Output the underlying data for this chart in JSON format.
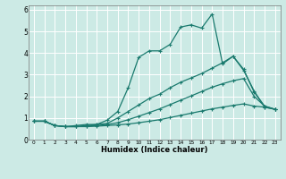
{
  "title": "",
  "xlabel": "Humidex (Indice chaleur)",
  "ylabel": "",
  "bg_color": "#cceae5",
  "line_color": "#1a7a6e",
  "grid_color": "#ffffff",
  "xlim": [
    -0.5,
    23.5
  ],
  "ylim": [
    0,
    6.2
  ],
  "xticks": [
    0,
    1,
    2,
    3,
    4,
    5,
    6,
    7,
    8,
    9,
    10,
    11,
    12,
    13,
    14,
    15,
    16,
    17,
    18,
    19,
    20,
    21,
    22,
    23
  ],
  "yticks": [
    0,
    1,
    2,
    3,
    4,
    5,
    6
  ],
  "series": [
    {
      "x": [
        0,
        1,
        2,
        3,
        4,
        5,
        6,
        7,
        8,
        9,
        10,
        11,
        12,
        13,
        14,
        15,
        16,
        17,
        18,
        19,
        20,
        21,
        22,
        23
      ],
      "y": [
        0.85,
        0.85,
        0.65,
        0.6,
        0.65,
        0.7,
        0.7,
        0.9,
        1.3,
        2.4,
        3.8,
        4.1,
        4.1,
        4.4,
        5.2,
        5.3,
        5.15,
        5.8,
        3.5,
        3.85,
        3.2,
        2.25,
        1.5,
        1.4
      ]
    },
    {
      "x": [
        0,
        1,
        2,
        3,
        4,
        5,
        6,
        7,
        8,
        9,
        10,
        11,
        12,
        13,
        14,
        15,
        16,
        17,
        18,
        19,
        20,
        21,
        22,
        23
      ],
      "y": [
        0.85,
        0.85,
        0.65,
        0.6,
        0.6,
        0.65,
        0.7,
        0.75,
        1.0,
        1.3,
        1.6,
        1.9,
        2.1,
        2.4,
        2.65,
        2.85,
        3.05,
        3.3,
        3.55,
        3.85,
        3.25,
        2.2,
        1.55,
        1.4
      ]
    },
    {
      "x": [
        0,
        1,
        2,
        3,
        4,
        5,
        6,
        7,
        8,
        9,
        10,
        11,
        12,
        13,
        14,
        15,
        16,
        17,
        18,
        19,
        20,
        21,
        22,
        23
      ],
      "y": [
        0.85,
        0.85,
        0.65,
        0.6,
        0.6,
        0.62,
        0.65,
        0.7,
        0.78,
        0.92,
        1.08,
        1.25,
        1.42,
        1.62,
        1.82,
        2.02,
        2.22,
        2.42,
        2.58,
        2.72,
        2.82,
        2.0,
        1.55,
        1.4
      ]
    },
    {
      "x": [
        0,
        1,
        2,
        3,
        4,
        5,
        6,
        7,
        8,
        9,
        10,
        11,
        12,
        13,
        14,
        15,
        16,
        17,
        18,
        19,
        20,
        21,
        22,
        23
      ],
      "y": [
        0.85,
        0.85,
        0.65,
        0.6,
        0.6,
        0.6,
        0.62,
        0.65,
        0.68,
        0.72,
        0.78,
        0.85,
        0.92,
        1.02,
        1.12,
        1.22,
        1.32,
        1.42,
        1.5,
        1.58,
        1.65,
        1.55,
        1.5,
        1.4
      ]
    }
  ]
}
